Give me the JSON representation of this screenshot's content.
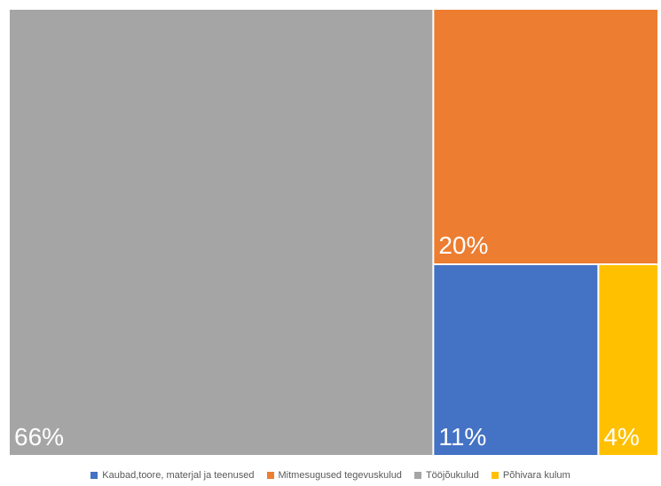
{
  "chart_data": {
    "type": "treemap",
    "title": "",
    "items": [
      {
        "name": "Tööjõukulud",
        "value": 66,
        "label": "66%",
        "color": "#A5A5A5"
      },
      {
        "name": "Mitmesugused tegevuskulud",
        "value": 20,
        "label": "20%",
        "color": "#ED7D31"
      },
      {
        "name": "Kaubad,toore, materjal ja teenused",
        "value": 11,
        "label": "11%",
        "color": "#4472C4"
      },
      {
        "name": "Põhivara kulum",
        "value": 4,
        "label": "4%",
        "color": "#FFC000"
      }
    ],
    "legend": {
      "position": "bottom",
      "order": [
        "Kaubad,toore, materjal ja teenused",
        "Mitmesugused tegevuskulud",
        "Tööjõukulud",
        "Põhivara kulum"
      ]
    }
  }
}
